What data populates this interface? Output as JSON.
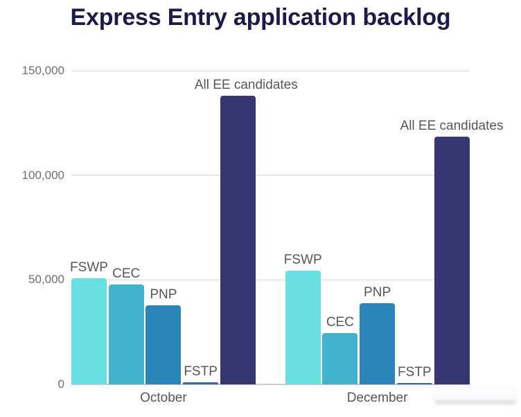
{
  "title": "Express Entry application backlog",
  "chart_data": {
    "type": "bar",
    "title": "Express Entry application backlog",
    "xlabel": "",
    "ylabel": "",
    "ylim": [
      0,
      150000
    ],
    "yticks": [
      150000,
      100000,
      50000,
      0
    ],
    "ytick_labels": [
      "150,000",
      "100,000",
      "50,000",
      "0"
    ],
    "grid": true,
    "legend_position": "none (series labeled above bars)",
    "categories": [
      "October",
      "December"
    ],
    "series": [
      {
        "name": "FSWP",
        "color": "#68e0e1",
        "values": [
          50900,
          54500
        ]
      },
      {
        "name": "CEC",
        "color": "#41b3ce",
        "values": [
          47800,
          24500
        ]
      },
      {
        "name": "PNP",
        "color": "#2b84b8",
        "values": [
          37800,
          38700
        ]
      },
      {
        "name": "FSTP",
        "color": "#3566a6",
        "values": [
          1000,
          800
        ]
      },
      {
        "name": "All EE candidates",
        "color": "#363670",
        "values": [
          138000,
          118600
        ]
      }
    ]
  }
}
